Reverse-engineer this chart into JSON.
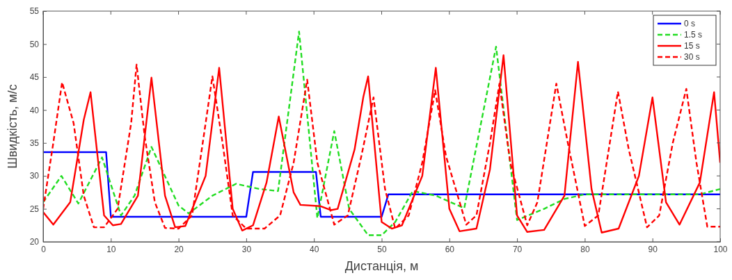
{
  "chart_data": {
    "type": "line",
    "xlabel": "Дистанція, м",
    "ylabel": "Швидкість, м/с",
    "xlim": [
      0,
      100
    ],
    "xticks": [
      0,
      10,
      20,
      30,
      40,
      50,
      60,
      70,
      80,
      90,
      100
    ],
    "ylim": [
      20,
      55
    ],
    "yticks": [
      20,
      25,
      30,
      35,
      40,
      45,
      50,
      55
    ],
    "grid": false,
    "legend": "top right",
    "marker": "none",
    "series": [
      {
        "name": "0 s",
        "color": "#0000ff",
        "line_style": "solid",
        "x": [
          0,
          9.3,
          10,
          30,
          31,
          40.3,
          41,
          50,
          51,
          100
        ],
        "values": [
          33.6,
          33.6,
          23.8,
          23.8,
          30.6,
          30.6,
          23.8,
          23.8,
          27.2,
          27.2
        ]
      },
      {
        "name": "1.5 s",
        "color": "#22dd22",
        "line_style": "dashed",
        "x": [
          0,
          2.7,
          5.2,
          8.7,
          11.5,
          13.5,
          16,
          20,
          21.5,
          25,
          28.5,
          32,
          34.7,
          37.8,
          40.5,
          43,
          45.2,
          48,
          50,
          52,
          54.6,
          58,
          62.2,
          66.9,
          70,
          74,
          77,
          80,
          97,
          100
        ],
        "values": [
          26,
          30,
          25.8,
          32.8,
          24,
          27,
          34.4,
          25.5,
          24.3,
          27,
          28.8,
          28,
          27.7,
          51.9,
          23.6,
          36.8,
          25,
          21,
          21,
          23,
          27.7,
          27,
          25.1,
          49.6,
          23.3,
          25,
          26.5,
          27.2,
          27.2,
          28
        ]
      },
      {
        "name": "15 s",
        "color": "#ff0000",
        "line_style": "solid",
        "x": [
          0,
          1.5,
          4,
          6,
          7,
          9,
          10.3,
          11.5,
          14,
          16,
          18,
          19.5,
          21,
          24,
          26,
          28,
          29.4,
          31,
          33,
          34.8,
          37,
          38,
          41,
          42.5,
          43.5,
          46,
          47.3,
          48,
          50,
          51.5,
          53,
          56,
          58,
          60,
          61.5,
          64,
          66,
          68,
          70,
          71.5,
          74,
          77,
          79,
          81,
          82.5,
          85,
          88,
          90,
          92,
          94,
          97,
          99.1,
          100
        ],
        "values": [
          24.5,
          22.6,
          26,
          38.5,
          42.7,
          24,
          22.5,
          22.7,
          27,
          44.9,
          27,
          22.2,
          22.4,
          30,
          46.4,
          25,
          21.7,
          22.5,
          29,
          39,
          27.5,
          25.6,
          25.4,
          24.8,
          25,
          34,
          42,
          45.1,
          23,
          22,
          22.5,
          30,
          46.4,
          25,
          21.6,
          22,
          31,
          48.3,
          24,
          21.5,
          21.8,
          27,
          47.3,
          28,
          21.4,
          22,
          30,
          41.9,
          26,
          22.6,
          29,
          42.7,
          32
        ]
      },
      {
        "name": "30 s",
        "color": "#ff0000",
        "line_style": "dashed",
        "x": [
          0,
          1.5,
          2.8,
          4.5,
          6,
          7.5,
          9,
          11,
          13,
          13.8,
          15,
          16.5,
          18,
          20,
          22,
          24,
          25,
          26.5,
          28,
          30,
          32.7,
          35,
          37,
          39,
          40.5,
          43,
          45,
          47,
          48.8,
          50.5,
          52,
          54,
          56,
          57.9,
          59.5,
          62.5,
          64,
          66,
          67.4,
          69,
          71.5,
          73,
          75.8,
          77.5,
          80,
          82,
          84.9,
          86.5,
          89.2,
          91,
          93,
          95,
          96.5,
          98.1,
          100
        ],
        "values": [
          25,
          35,
          44.2,
          38,
          27,
          22.2,
          22.2,
          25,
          38,
          46.9,
          36,
          26,
          22.1,
          22,
          24,
          38,
          45.1,
          35,
          24,
          22,
          22,
          24,
          32,
          44.6,
          32,
          22.6,
          24,
          33,
          41.9,
          28,
          22,
          24,
          32,
          43,
          33,
          22.6,
          24,
          35,
          44,
          32,
          22.5,
          26,
          44,
          35,
          22.4,
          24,
          42.8,
          34,
          22.2,
          24,
          35,
          43.2,
          32,
          22.3,
          22.3
        ]
      }
    ]
  }
}
